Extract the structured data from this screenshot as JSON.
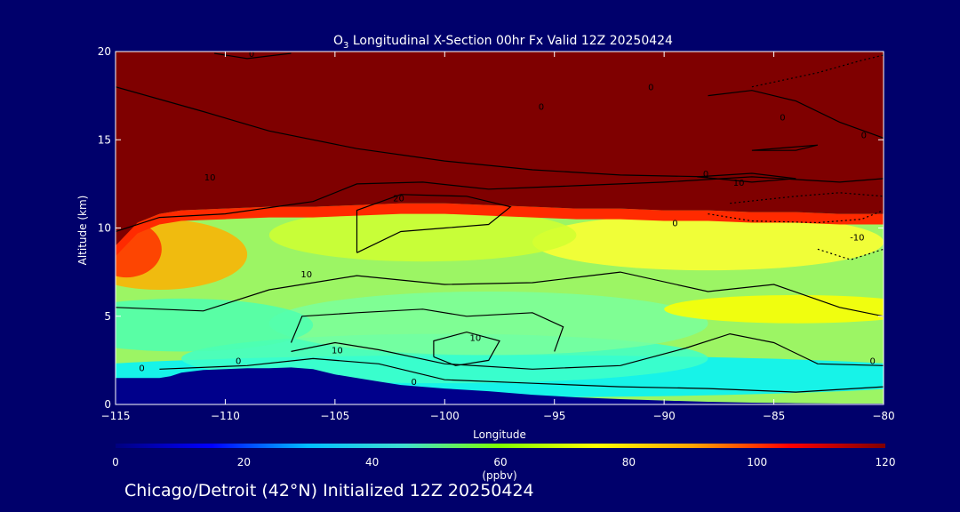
{
  "colors": {
    "background": "#00006b",
    "text": "#ffffff",
    "contour": "#000000",
    "colorbar_stops": [
      "#00007f",
      "#0000ff",
      "#00bfff",
      "#40e0d0",
      "#7fff00",
      "#ffff00",
      "#ffa500",
      "#ff0000",
      "#7f0000"
    ]
  },
  "chart_data": {
    "type": "heatmap",
    "title_prefix": "O",
    "title_sub": "3",
    "title_rest": " Longitudinal X-Section 00hr  Fx Valid 12Z 20250424",
    "xlabel": "Longitude",
    "ylabel": "Altitude (km)",
    "xlim": [
      -115,
      -80
    ],
    "ylim": [
      0,
      20
    ],
    "xticks": [
      -115,
      -110,
      -105,
      -100,
      -95,
      -90,
      -85,
      -80
    ],
    "xtick_labels": [
      "−115",
      "−110",
      "−105",
      "−100",
      "−95",
      "−90",
      "−85",
      "−80"
    ],
    "yticks": [
      0,
      5,
      10,
      15,
      20
    ],
    "ytick_labels": [
      "0",
      "5",
      "10",
      "15",
      "20"
    ],
    "colorbar": {
      "label": "(ppbv)",
      "range": [
        0,
        120
      ],
      "ticks": [
        0,
        20,
        40,
        60,
        80,
        100,
        120
      ],
      "tick_labels": [
        "0",
        "20",
        "40",
        "60",
        "80",
        "100",
        "120"
      ]
    },
    "terrain_km": [
      [
        -115,
        1.5
      ],
      [
        -114,
        1.5
      ],
      [
        -113,
        1.5
      ],
      [
        -112.5,
        1.6
      ],
      [
        -112,
        1.8
      ],
      [
        -111,
        1.95
      ],
      [
        -110,
        2.0
      ],
      [
        -109,
        2.05
      ],
      [
        -108,
        2.05
      ],
      [
        -107,
        2.1
      ],
      [
        -106,
        2.0
      ],
      [
        -105,
        1.7
      ],
      [
        -104,
        1.5
      ],
      [
        -103,
        1.3
      ],
      [
        -102,
        1.1
      ],
      [
        -100,
        0.9
      ],
      [
        -98,
        0.75
      ],
      [
        -96,
        0.55
      ],
      [
        -94,
        0.4
      ],
      [
        -92,
        0.3
      ],
      [
        -90,
        0.22
      ],
      [
        -88,
        0.15
      ],
      [
        -86,
        0.1
      ],
      [
        -84,
        0.07
      ],
      [
        -82,
        0.05
      ],
      [
        -80,
        0.05
      ]
    ],
    "tropopause_km": [
      [
        -115,
        9.0
      ],
      [
        -114,
        10.3
      ],
      [
        -113,
        10.8
      ],
      [
        -112,
        11.0
      ],
      [
        -110,
        11.1
      ],
      [
        -108,
        11.2
      ],
      [
        -106,
        11.2
      ],
      [
        -104,
        11.3
      ],
      [
        -102,
        11.4
      ],
      [
        -100,
        11.4
      ],
      [
        -98,
        11.3
      ],
      [
        -96,
        11.2
      ],
      [
        -94,
        11.1
      ],
      [
        -92,
        11.1
      ],
      [
        -90,
        11.0
      ],
      [
        -88,
        11.0
      ],
      [
        -86,
        10.9
      ],
      [
        -84,
        10.9
      ],
      [
        -82,
        10.8
      ],
      [
        -80,
        10.8
      ]
    ],
    "contour_labels": [
      {
        "text": "0",
        "x": -113.8,
        "y": 1.9
      },
      {
        "text": "0",
        "x": -109.4,
        "y": 2.3
      },
      {
        "text": "10",
        "x": -104.9,
        "y": 2.9
      },
      {
        "text": "0",
        "x": -101.4,
        "y": 1.1
      },
      {
        "text": "10",
        "x": -98.6,
        "y": 3.6
      },
      {
        "text": "10",
        "x": -106.3,
        "y": 7.2
      },
      {
        "text": "20",
        "x": -102.1,
        "y": 11.5
      },
      {
        "text": "10",
        "x": -110.7,
        "y": 12.7
      },
      {
        "text": "0",
        "x": -89.5,
        "y": 10.1
      },
      {
        "text": "0",
        "x": -88.1,
        "y": 12.9
      },
      {
        "text": "10",
        "x": -86.6,
        "y": 12.4
      },
      {
        "text": "-10",
        "x": -81.2,
        "y": 9.3
      },
      {
        "text": "0",
        "x": -80.5,
        "y": 2.3
      },
      {
        "text": "0",
        "x": -90.6,
        "y": 17.8
      },
      {
        "text": "0",
        "x": -84.6,
        "y": 16.1
      },
      {
        "text": "0",
        "x": -80.9,
        "y": 15.1
      },
      {
        "text": "0",
        "x": -95.6,
        "y": 16.7
      },
      {
        "text": "0",
        "x": -108.8,
        "y": 19.7
      }
    ]
  },
  "footer": "Chicago/Detroit (42°N) Initialized 12Z 20250424"
}
